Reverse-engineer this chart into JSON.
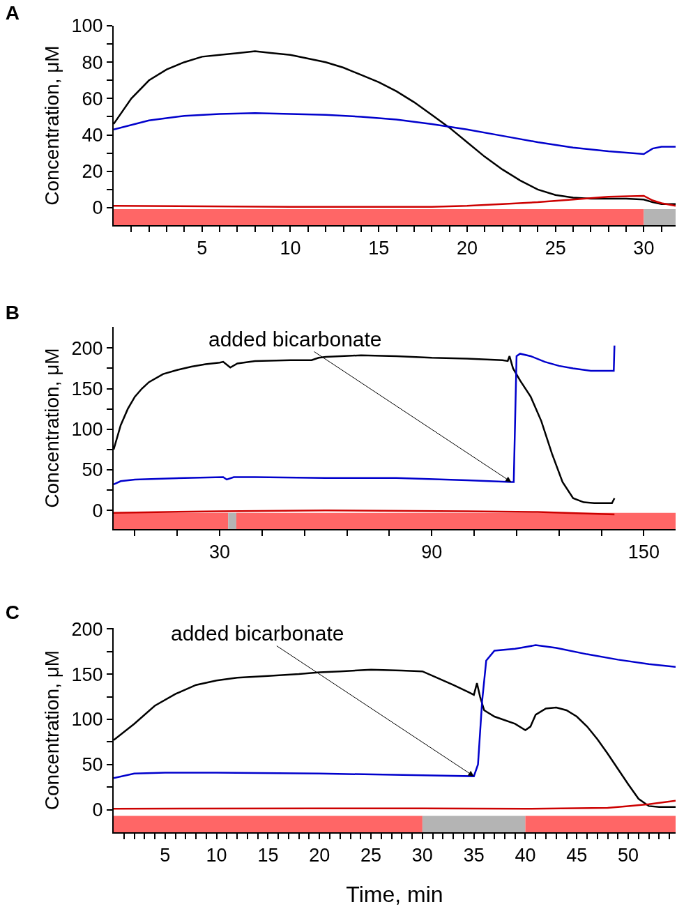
{
  "chart_data": [
    {
      "type": "line",
      "title": "A",
      "ylabel": "Concentration, μM",
      "xlim": [
        0,
        31.8
      ],
      "ylim": [
        -9.6,
        100
      ],
      "xticks": [
        {
          "value": 1,
          "label": null
        },
        {
          "value": 2,
          "label": null
        },
        {
          "value": 3,
          "label": null
        },
        {
          "value": 4,
          "label": null
        },
        5,
        {
          "value": 6,
          "label": null
        },
        {
          "value": 7,
          "label": null
        },
        {
          "value": 8,
          "label": null
        },
        {
          "value": 9,
          "label": null
        },
        10,
        {
          "value": 11,
          "label": null
        },
        {
          "value": 12,
          "label": null
        },
        {
          "value": 13,
          "label": null
        },
        {
          "value": 14,
          "label": null
        },
        15,
        {
          "value": 16,
          "label": null
        },
        {
          "value": 17,
          "label": null
        },
        {
          "value": 18,
          "label": null
        },
        {
          "value": 19,
          "label": null
        },
        20,
        {
          "value": 21,
          "label": null
        },
        {
          "value": 22,
          "label": null
        },
        {
          "value": 23,
          "label": null
        },
        {
          "value": 24,
          "label": null
        },
        25,
        {
          "value": 26,
          "label": null
        },
        {
          "value": 27,
          "label": null
        },
        {
          "value": 28,
          "label": null
        },
        {
          "value": 29,
          "label": null
        },
        30,
        {
          "value": 31,
          "label": null
        }
      ],
      "yticks": [
        0,
        {
          "value": 10,
          "label": null
        },
        20,
        {
          "value": 30,
          "label": null
        },
        40,
        {
          "value": 50,
          "label": null
        },
        60,
        {
          "value": 70,
          "label": null
        },
        80,
        {
          "value": 90,
          "label": null
        },
        100
      ],
      "bands": [
        {
          "axis": "x",
          "from": 0,
          "to": 30,
          "color": "#ff6666"
        },
        {
          "axis": "x",
          "from": 30,
          "to": 31.8,
          "color": "#b4b4b4"
        }
      ],
      "series": [
        {
          "color": "#000000",
          "x": [
            0,
            1,
            2,
            3,
            4,
            5,
            6,
            7,
            8,
            9,
            10,
            11,
            12,
            13,
            14,
            15,
            16,
            17,
            18,
            19,
            20,
            21,
            22,
            23,
            24,
            25,
            26,
            27,
            28,
            29,
            30,
            30.5,
            31,
            31.8
          ],
          "values": [
            46,
            60,
            70,
            76,
            80,
            83,
            84,
            85,
            86,
            85,
            84,
            82,
            80,
            77,
            73,
            69,
            64,
            58,
            51,
            44,
            36,
            28,
            21,
            15,
            10,
            7,
            5.5,
            5,
            5,
            5,
            4.5,
            3,
            2,
            2
          ]
        },
        {
          "color": "#0000cc",
          "x": [
            0,
            2,
            4,
            6,
            8,
            10,
            12,
            14,
            16,
            18,
            20,
            22,
            24,
            26,
            28,
            30,
            30.5,
            31,
            31.8
          ],
          "values": [
            43,
            48,
            50.5,
            51.5,
            52,
            51.5,
            51,
            50,
            48.5,
            46,
            43,
            39.5,
            36,
            33,
            31,
            29.5,
            32.5,
            33.5,
            33.5
          ]
        },
        {
          "color": "#cc0000",
          "x": [
            0,
            10,
            18,
            20,
            22,
            24,
            26,
            28,
            30,
            30.5,
            31,
            31.8
          ],
          "values": [
            1,
            0.5,
            0.5,
            1,
            2,
            3,
            4.5,
            6,
            6.5,
            4,
            2.5,
            1
          ]
        }
      ]
    },
    {
      "type": "line",
      "title": "B",
      "ylabel": "Concentration, μM",
      "xlim": [
        0,
        159
      ],
      "ylim": [
        -23,
        226
      ],
      "xticks": [
        {
          "value": 6,
          "label": null
        },
        {
          "value": 18,
          "label": null
        },
        30,
        {
          "value": 42,
          "label": null
        },
        {
          "value": 54,
          "label": null
        },
        {
          "value": 66,
          "label": null
        },
        {
          "value": 78,
          "label": null
        },
        90,
        {
          "value": 102,
          "label": null
        },
        {
          "value": 114,
          "label": null
        },
        {
          "value": 126,
          "label": null
        },
        {
          "value": 138,
          "label": null
        },
        150
      ],
      "yticks": [
        0,
        {
          "value": 25,
          "label": null
        },
        50,
        {
          "value": 75,
          "label": null
        },
        100,
        {
          "value": 125,
          "label": null
        },
        150,
        {
          "value": 175,
          "label": null
        },
        200
      ],
      "bands": [
        {
          "axis": "x",
          "from": 0,
          "to": 32.4,
          "color": "#ff6666"
        },
        {
          "axis": "x",
          "from": 32.4,
          "to": 34.7,
          "color": "#b4b4b4"
        },
        {
          "axis": "x",
          "from": 34.7,
          "to": 159,
          "color": "#ff6666"
        }
      ],
      "annotations": [
        {
          "text": "added bicarbonate",
          "x": 112.5,
          "y": 35
        }
      ],
      "series": [
        {
          "color": "#000000",
          "x": [
            0,
            2,
            4,
            6,
            8,
            10,
            14,
            18,
            22,
            26,
            30,
            31,
            33,
            35,
            40,
            50,
            56,
            58,
            60,
            70,
            80,
            90,
            100,
            110,
            111.5,
            112,
            113,
            115,
            118,
            121,
            124,
            127,
            130,
            133,
            136,
            141,
            141.7
          ],
          "values": [
            75,
            105,
            125,
            140,
            150,
            158,
            168,
            173,
            177,
            180,
            182,
            183,
            176,
            181,
            184,
            185,
            185,
            188,
            189,
            191,
            190,
            188,
            187,
            185,
            184,
            190,
            175,
            160,
            140,
            110,
            70,
            35,
            15,
            10,
            9,
            9,
            15
          ]
        },
        {
          "color": "#0000cc",
          "x": [
            0,
            2,
            6,
            20,
            31,
            32,
            34,
            40,
            60,
            80,
            100,
            112.5,
            113.2,
            114,
            115,
            118,
            122,
            126,
            130,
            135,
            141.5,
            141.7
          ],
          "values": [
            32,
            36,
            38,
            40,
            41,
            38,
            41,
            41,
            40,
            40,
            37,
            35,
            35,
            190,
            193,
            190,
            183,
            178,
            175,
            172,
            172,
            203
          ]
        },
        {
          "color": "#cc0000",
          "x": [
            0,
            30,
            60,
            100,
            120,
            141.7
          ],
          "values": [
            -3,
            -1,
            0,
            -1,
            -2,
            -5
          ]
        }
      ]
    },
    {
      "type": "line",
      "title": "C",
      "ylabel": "Concentration, μM",
      "xlabel": "Time, min",
      "xlim": [
        0,
        54.6
      ],
      "ylim": [
        -25,
        201
      ],
      "xticks": [
        {
          "value": 1,
          "label": null
        },
        {
          "value": 2,
          "label": null
        },
        {
          "value": 3,
          "label": null
        },
        {
          "value": 4,
          "label": null
        },
        5,
        {
          "value": 6,
          "label": null
        },
        {
          "value": 7,
          "label": null
        },
        {
          "value": 8,
          "label": null
        },
        {
          "value": 9,
          "label": null
        },
        10,
        {
          "value": 11,
          "label": null
        },
        {
          "value": 12,
          "label": null
        },
        {
          "value": 13,
          "label": null
        },
        {
          "value": 14,
          "label": null
        },
        15,
        {
          "value": 16,
          "label": null
        },
        {
          "value": 17,
          "label": null
        },
        {
          "value": 18,
          "label": null
        },
        {
          "value": 19,
          "label": null
        },
        20,
        {
          "value": 21,
          "label": null
        },
        {
          "value": 22,
          "label": null
        },
        {
          "value": 23,
          "label": null
        },
        {
          "value": 24,
          "label": null
        },
        25,
        {
          "value": 26,
          "label": null
        },
        {
          "value": 27,
          "label": null
        },
        {
          "value": 28,
          "label": null
        },
        {
          "value": 29,
          "label": null
        },
        30,
        {
          "value": 31,
          "label": null
        },
        {
          "value": 32,
          "label": null
        },
        {
          "value": 33,
          "label": null
        },
        {
          "value": 34,
          "label": null
        },
        35,
        {
          "value": 36,
          "label": null
        },
        {
          "value": 37,
          "label": null
        },
        {
          "value": 38,
          "label": null
        },
        {
          "value": 39,
          "label": null
        },
        40,
        {
          "value": 41,
          "label": null
        },
        {
          "value": 42,
          "label": null
        },
        {
          "value": 43,
          "label": null
        },
        {
          "value": 44,
          "label": null
        },
        45,
        {
          "value": 46,
          "label": null
        },
        {
          "value": 47,
          "label": null
        },
        {
          "value": 48,
          "label": null
        },
        {
          "value": 49,
          "label": null
        },
        50,
        {
          "value": 51,
          "label": null
        },
        {
          "value": 52,
          "label": null
        },
        {
          "value": 53,
          "label": null
        },
        {
          "value": 54,
          "label": null
        }
      ],
      "yticks": [
        0,
        {
          "value": 25,
          "label": null
        },
        50,
        {
          "value": 75,
          "label": null
        },
        100,
        {
          "value": 125,
          "label": null
        },
        150,
        {
          "value": 175,
          "label": null
        },
        200
      ],
      "bands": [
        {
          "axis": "x",
          "from": 0,
          "to": 30,
          "color": "#ff6666"
        },
        {
          "axis": "x",
          "from": 30,
          "to": 40,
          "color": "#b4b4b4"
        },
        {
          "axis": "x",
          "from": 40,
          "to": 54.6,
          "color": "#ff6666"
        }
      ],
      "annotations": [
        {
          "text": "added bicarbonate",
          "x": 35,
          "y": 37
        }
      ],
      "series": [
        {
          "color": "#000000",
          "x": [
            0,
            2,
            4,
            6,
            8,
            10,
            12,
            15,
            18,
            20,
            22,
            25,
            28,
            30,
            31,
            33,
            34.5,
            35,
            35.3,
            35.6,
            36,
            37,
            39,
            40,
            40.5,
            41,
            42,
            43,
            44,
            45,
            46,
            47,
            48,
            49,
            50,
            51,
            52,
            53,
            54.6
          ],
          "values": [
            77,
            95,
            115,
            128,
            138,
            143,
            146,
            148,
            150,
            152,
            153,
            155,
            154,
            153,
            148,
            138,
            130,
            127,
            140,
            125,
            110,
            103,
            95,
            88,
            92,
            105,
            112,
            113,
            110,
            103,
            92,
            78,
            62,
            45,
            28,
            12,
            4,
            3,
            3
          ]
        },
        {
          "color": "#0000cc",
          "x": [
            0,
            2,
            5,
            10,
            20,
            30,
            35,
            35.4,
            35.8,
            36.2,
            37,
            39,
            40,
            41,
            43,
            46,
            49,
            52,
            54.6
          ],
          "values": [
            35,
            40,
            41,
            41,
            40,
            38,
            37,
            50,
            120,
            165,
            176,
            178,
            180,
            182,
            179,
            172,
            166,
            161,
            158
          ]
        },
        {
          "color": "#cc0000",
          "x": [
            0,
            20,
            30,
            40,
            48,
            50,
            52,
            54.6
          ],
          "values": [
            1,
            1.5,
            1.5,
            1,
            2,
            4,
            6,
            10
          ]
        }
      ]
    }
  ]
}
